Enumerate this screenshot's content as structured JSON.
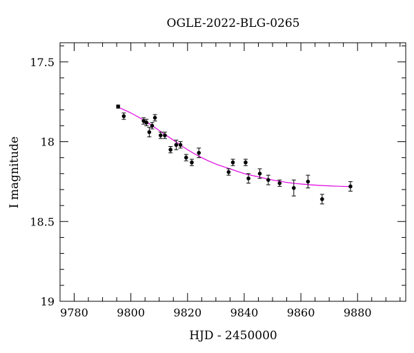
{
  "chart_data": {
    "type": "scatter",
    "title": "OGLE-2022-BLG-0265",
    "xlabel": "HJD - 2450000",
    "ylabel": "I magnitude",
    "xlim": [
      9775,
      9897
    ],
    "ylim": [
      19.0,
      17.38
    ],
    "y_inverted": true,
    "grid": false,
    "x_ticks": [
      9780,
      9800,
      9820,
      9840,
      9860,
      9880
    ],
    "x_tick_labels": [
      "9780",
      "9800",
      "9820",
      "9840",
      "9860",
      "9880"
    ],
    "x_minor_step": 5,
    "y_ticks": [
      17.5,
      18.0,
      18.5,
      19.0
    ],
    "y_tick_labels": [
      "17.5",
      "18",
      "18.5",
      "19"
    ],
    "y_minor_step": 0.1,
    "series": [
      {
        "marker": "point",
        "color": "#000000",
        "points": [
          {
            "x": 9795.5,
            "y": 17.78,
            "err": 0.01
          },
          {
            "x": 9797.5,
            "y": 17.84,
            "err": 0.02
          },
          {
            "x": 9804.5,
            "y": 17.87,
            "err": 0.02
          },
          {
            "x": 9805.5,
            "y": 17.88,
            "err": 0.02
          },
          {
            "x": 9806.5,
            "y": 17.94,
            "err": 0.03
          },
          {
            "x": 9807.5,
            "y": 17.9,
            "err": 0.02
          },
          {
            "x": 9808.5,
            "y": 17.85,
            "err": 0.02
          },
          {
            "x": 9810.5,
            "y": 17.96,
            "err": 0.02
          },
          {
            "x": 9812.0,
            "y": 17.96,
            "err": 0.02
          },
          {
            "x": 9814.0,
            "y": 18.05,
            "err": 0.02
          },
          {
            "x": 9816.0,
            "y": 18.02,
            "err": 0.03
          },
          {
            "x": 9817.5,
            "y": 18.02,
            "err": 0.02
          },
          {
            "x": 9819.5,
            "y": 18.1,
            "err": 0.02
          },
          {
            "x": 9821.5,
            "y": 18.13,
            "err": 0.02
          },
          {
            "x": 9824.0,
            "y": 18.07,
            "err": 0.03
          },
          {
            "x": 9834.5,
            "y": 18.19,
            "err": 0.02
          },
          {
            "x": 9836.0,
            "y": 18.13,
            "err": 0.02
          },
          {
            "x": 9840.5,
            "y": 18.13,
            "err": 0.02
          },
          {
            "x": 9841.5,
            "y": 18.23,
            "err": 0.03
          },
          {
            "x": 9845.5,
            "y": 18.2,
            "err": 0.03
          },
          {
            "x": 9848.5,
            "y": 18.24,
            "err": 0.03
          },
          {
            "x": 9852.5,
            "y": 18.26,
            "err": 0.02
          },
          {
            "x": 9857.5,
            "y": 18.29,
            "err": 0.05
          },
          {
            "x": 9862.5,
            "y": 18.25,
            "err": 0.04
          },
          {
            "x": 9867.5,
            "y": 18.36,
            "err": 0.03
          },
          {
            "x": 9877.5,
            "y": 18.28,
            "err": 0.03
          }
        ]
      },
      {
        "marker": "line",
        "color": "#e000e0",
        "points": [
          {
            "x": 9795,
            "y": 17.78
          },
          {
            "x": 9800,
            "y": 17.82
          },
          {
            "x": 9805,
            "y": 17.87
          },
          {
            "x": 9810,
            "y": 17.93
          },
          {
            "x": 9815,
            "y": 17.99
          },
          {
            "x": 9820,
            "y": 18.05
          },
          {
            "x": 9825,
            "y": 18.1
          },
          {
            "x": 9830,
            "y": 18.14
          },
          {
            "x": 9835,
            "y": 18.17
          },
          {
            "x": 9840,
            "y": 18.2
          },
          {
            "x": 9845,
            "y": 18.22
          },
          {
            "x": 9850,
            "y": 18.24
          },
          {
            "x": 9855,
            "y": 18.255
          },
          {
            "x": 9860,
            "y": 18.265
          },
          {
            "x": 9865,
            "y": 18.272
          },
          {
            "x": 9870,
            "y": 18.277
          },
          {
            "x": 9878,
            "y": 18.282
          }
        ]
      }
    ]
  }
}
